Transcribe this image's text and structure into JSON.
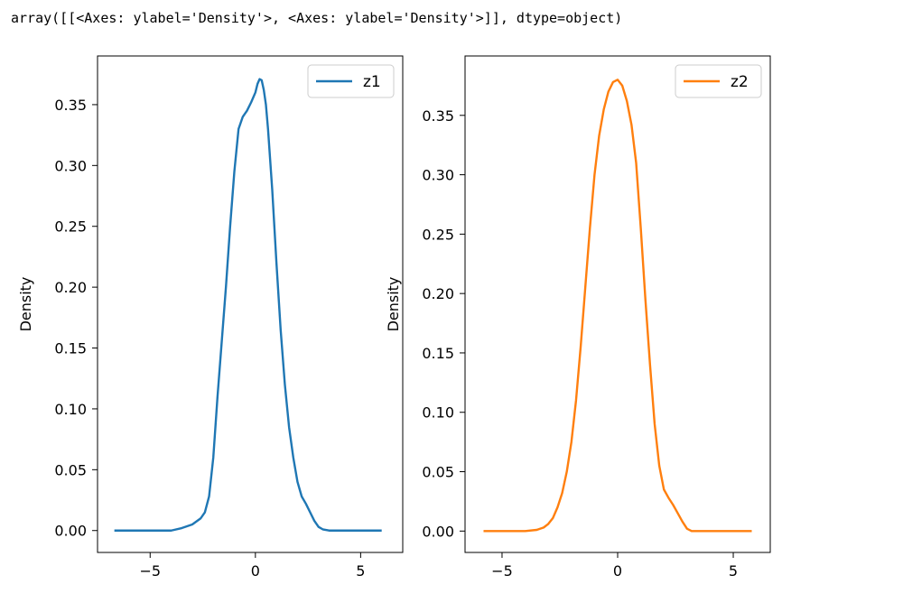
{
  "output_text": "array([[<Axes: ylabel='Density'>, <Axes: ylabel='Density'>]], dtype=object)",
  "chart_data": [
    {
      "type": "line",
      "ylabel": "Density",
      "xlim": [
        -7.5,
        7.0
      ],
      "ylim": [
        -0.018,
        0.39
      ],
      "xticks": [
        -5,
        0,
        5
      ],
      "xtick_labels": [
        "−5",
        "0",
        "5"
      ],
      "yticks": [
        0.0,
        0.05,
        0.1,
        0.15,
        0.2,
        0.25,
        0.3,
        0.35
      ],
      "ytick_labels": [
        "0.00",
        "0.05",
        "0.10",
        "0.15",
        "0.20",
        "0.25",
        "0.30",
        "0.35"
      ],
      "legend_placement": "top-right",
      "series": [
        {
          "name": "z1",
          "color": "#1f77b4",
          "x": [
            -6.7,
            -5.0,
            -4.0,
            -3.5,
            -3.0,
            -2.6,
            -2.4,
            -2.2,
            -2.0,
            -1.8,
            -1.6,
            -1.4,
            -1.2,
            -1.0,
            -0.8,
            -0.6,
            -0.4,
            -0.2,
            0.0,
            0.1,
            0.2,
            0.3,
            0.4,
            0.5,
            0.6,
            0.8,
            1.0,
            1.2,
            1.4,
            1.6,
            1.8,
            2.0,
            2.2,
            2.4,
            2.6,
            2.8,
            3.0,
            3.2,
            3.5,
            4.0,
            5.0,
            6.0
          ],
          "y": [
            0.0,
            0.0,
            0.0,
            0.002,
            0.005,
            0.01,
            0.015,
            0.028,
            0.06,
            0.11,
            0.155,
            0.2,
            0.25,
            0.295,
            0.33,
            0.34,
            0.345,
            0.352,
            0.36,
            0.367,
            0.371,
            0.37,
            0.362,
            0.35,
            0.33,
            0.28,
            0.22,
            0.165,
            0.12,
            0.085,
            0.06,
            0.04,
            0.028,
            0.022,
            0.015,
            0.008,
            0.003,
            0.001,
            0.0,
            0.0,
            0.0,
            0.0
          ]
        }
      ]
    },
    {
      "type": "line",
      "ylabel": "Density",
      "xlim": [
        -6.6,
        6.6
      ],
      "ylim": [
        -0.018,
        0.4
      ],
      "xticks": [
        -5,
        0,
        5
      ],
      "xtick_labels": [
        "−5",
        "0",
        "5"
      ],
      "yticks": [
        0.0,
        0.05,
        0.1,
        0.15,
        0.2,
        0.25,
        0.3,
        0.35
      ],
      "ytick_labels": [
        "0.00",
        "0.05",
        "0.10",
        "0.15",
        "0.20",
        "0.25",
        "0.30",
        "0.35"
      ],
      "legend_placement": "top-right",
      "series": [
        {
          "name": "z2",
          "color": "#ff7f0e",
          "x": [
            -5.8,
            -5.0,
            -4.0,
            -3.5,
            -3.2,
            -3.0,
            -2.8,
            -2.6,
            -2.4,
            -2.2,
            -2.0,
            -1.8,
            -1.6,
            -1.4,
            -1.2,
            -1.0,
            -0.8,
            -0.6,
            -0.4,
            -0.2,
            0.0,
            0.2,
            0.4,
            0.6,
            0.8,
            1.0,
            1.2,
            1.4,
            1.6,
            1.8,
            2.0,
            2.2,
            2.4,
            2.6,
            2.8,
            3.0,
            3.2,
            3.5,
            4.0,
            5.0,
            5.8
          ],
          "y": [
            0.0,
            0.0,
            0.0,
            0.001,
            0.003,
            0.006,
            0.011,
            0.02,
            0.032,
            0.05,
            0.075,
            0.11,
            0.155,
            0.205,
            0.255,
            0.3,
            0.333,
            0.355,
            0.37,
            0.378,
            0.38,
            0.375,
            0.362,
            0.342,
            0.31,
            0.255,
            0.195,
            0.14,
            0.09,
            0.055,
            0.035,
            0.028,
            0.022,
            0.015,
            0.008,
            0.002,
            0.0,
            0.0,
            0.0,
            0.0,
            0.0
          ]
        }
      ]
    }
  ]
}
